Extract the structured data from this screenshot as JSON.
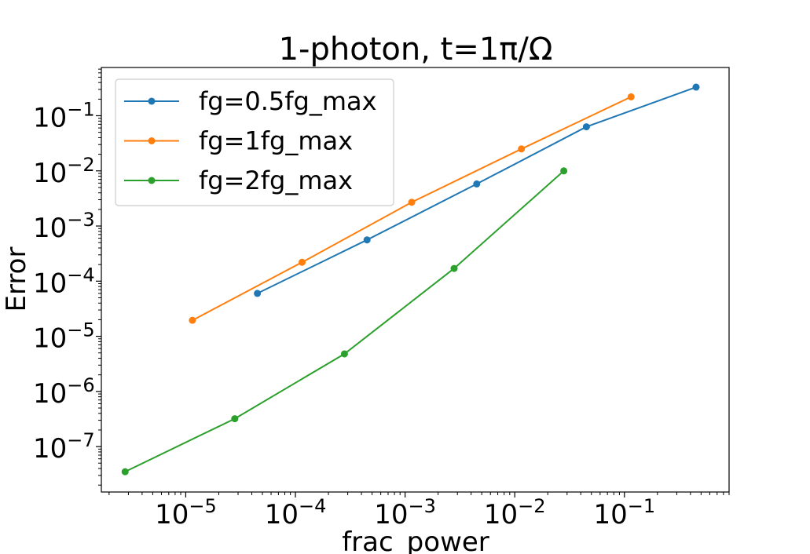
{
  "chart_data": {
    "type": "line",
    "title": "1-photon, t=1π/Ω",
    "xlabel": "frac_power",
    "ylabel": "Error",
    "xscale": "log",
    "yscale": "log",
    "xlim": [
      1.7e-06,
      0.9
    ],
    "ylim": [
      1.5e-08,
      0.75
    ],
    "xticks": [
      {
        "value": 1e-05,
        "base": "10",
        "exp": "−5"
      },
      {
        "value": 0.0001,
        "base": "10",
        "exp": "−4"
      },
      {
        "value": 0.001,
        "base": "10",
        "exp": "−3"
      },
      {
        "value": 0.01,
        "base": "10",
        "exp": "−2"
      },
      {
        "value": 0.1,
        "base": "10",
        "exp": "−1"
      }
    ],
    "yticks": [
      {
        "value": 1e-07,
        "base": "10",
        "exp": "−7"
      },
      {
        "value": 1e-06,
        "base": "10",
        "exp": "−6"
      },
      {
        "value": 1e-05,
        "base": "10",
        "exp": "−5"
      },
      {
        "value": 0.0001,
        "base": "10",
        "exp": "−4"
      },
      {
        "value": 0.001,
        "base": "10",
        "exp": "−3"
      },
      {
        "value": 0.01,
        "base": "10",
        "exp": "−2"
      },
      {
        "value": 0.1,
        "base": "10",
        "exp": "−1"
      }
    ],
    "grid": false,
    "legend_position": "top-left",
    "series": [
      {
        "name": "fg=0.5fg_max",
        "color": "#1f77b4",
        "x": [
          4.5e-05,
          0.00045,
          0.0045,
          0.045,
          0.45
        ],
        "y": [
          6e-05,
          0.00056,
          0.0058,
          0.063,
          0.33
        ]
      },
      {
        "name": "fg=1fg_max",
        "color": "#ff7f0e",
        "x": [
          1.15e-05,
          0.000115,
          0.00115,
          0.0115,
          0.115
        ],
        "y": [
          1.95e-05,
          0.00022,
          0.0027,
          0.025,
          0.22
        ]
      },
      {
        "name": "fg=2fg_max",
        "color": "#2ca02c",
        "x": [
          2.8e-06,
          2.8e-05,
          0.00028,
          0.0028,
          0.028
        ],
        "y": [
          3.5e-08,
          3.2e-07,
          4.8e-06,
          0.00017,
          0.01
        ]
      }
    ]
  }
}
